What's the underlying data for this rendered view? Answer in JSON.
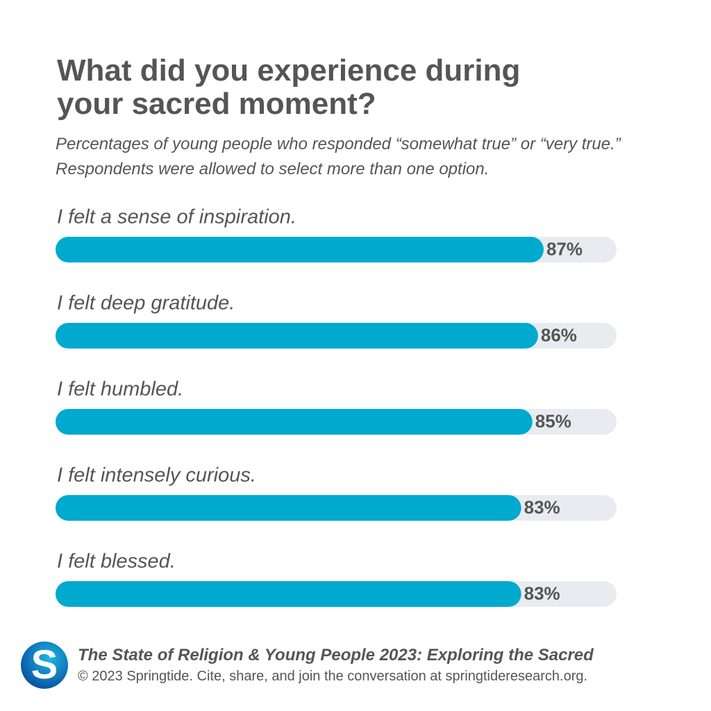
{
  "chart_data": {
    "type": "bar",
    "orientation": "horizontal",
    "title": "What did you experience during your sacred moment?",
    "subtitle": "Percentages of young people who responded “somewhat true” or “very true.” Respondents were allowed to select more than one option.",
    "categories": [
      "I felt a sense of inspiration.",
      "I felt deep gratitude.",
      "I felt humbled.",
      "I felt intensely curious.",
      "I felt blessed."
    ],
    "values": [
      87,
      86,
      85,
      83,
      83
    ],
    "value_labels": [
      "87%",
      "86%",
      "85%",
      "83%",
      "83%"
    ],
    "color": "#00a9ce",
    "track_color": "#e8ebf0",
    "xlim": [
      0,
      100
    ]
  },
  "footer": {
    "logo": "S",
    "source": "The State of Religion & Young People 2023: Exploring the Sacred",
    "copyright": "© 2023 Springtide. Cite, share, and join the conversation at springtideresearch.org."
  }
}
